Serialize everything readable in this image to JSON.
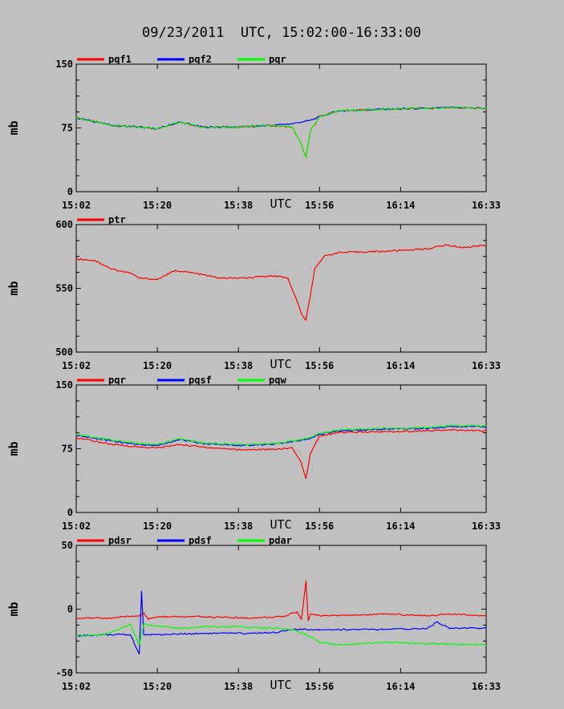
{
  "title": "09/23/2011  UTC, 15:02:00-16:33:00",
  "colors": {
    "red": "#ff0000",
    "blue": "#0000ff",
    "green": "#00ff00",
    "background": "#c0c0c0",
    "axis": "#000000"
  },
  "chart_data": [
    {
      "type": "line",
      "ylabel": "mb",
      "xlabel": "UTC",
      "x_ticks": [
        "15:02",
        "15:20",
        "15:38",
        "15:56",
        "16:14",
        "16:33"
      ],
      "ylim": [
        0,
        150
      ],
      "y_ticks": [
        "0",
        "75",
        "150"
      ],
      "grid": false,
      "legend": "top",
      "series": [
        {
          "name": "pqf1",
          "color": "#ff0000",
          "x": [
            "15:02",
            "15:10",
            "15:16",
            "15:20",
            "15:25",
            "15:30",
            "15:38",
            "15:45",
            "15:50",
            "15:52",
            "15:53",
            "15:54",
            "15:56",
            "16:00",
            "16:10",
            "16:20",
            "16:25",
            "16:33"
          ],
          "y": [
            87,
            78,
            76,
            74,
            82,
            76,
            76,
            78,
            76,
            55,
            40,
            72,
            88,
            95,
            97,
            98,
            99,
            98
          ]
        },
        {
          "name": "pqf2",
          "color": "#0000ff",
          "x": [
            "15:02",
            "15:10",
            "15:16",
            "15:20",
            "15:25",
            "15:30",
            "15:38",
            "15:45",
            "15:50",
            "15:52",
            "15:53",
            "15:54",
            "15:56",
            "16:00",
            "16:10",
            "16:20",
            "16:25",
            "16:33"
          ],
          "y": [
            87,
            78,
            76,
            74,
            82,
            76,
            76,
            78,
            80,
            82,
            83,
            84,
            88,
            95,
            97,
            98,
            99,
            98
          ]
        },
        {
          "name": "pqr",
          "color": "#00ff00",
          "x": [
            "15:02",
            "15:10",
            "15:16",
            "15:20",
            "15:25",
            "15:30",
            "15:38",
            "15:45",
            "15:50",
            "15:52",
            "15:53",
            "15:54",
            "15:56",
            "16:00",
            "16:10",
            "16:20",
            "16:25",
            "16:33"
          ],
          "y": [
            87,
            78,
            76,
            74,
            82,
            76,
            76,
            78,
            76,
            55,
            40,
            72,
            88,
            95,
            97,
            98,
            99,
            98
          ]
        }
      ]
    },
    {
      "type": "line",
      "ylabel": "mb",
      "xlabel": "UTC",
      "x_ticks": [
        "15:02",
        "15:20",
        "15:38",
        "15:56",
        "16:14",
        "16:33"
      ],
      "ylim": [
        500,
        600
      ],
      "y_ticks": [
        "500",
        "550",
        "600"
      ],
      "grid": false,
      "legend": "top",
      "series": [
        {
          "name": "ptr",
          "color": "#ff0000",
          "x": [
            "15:02",
            "15:06",
            "15:10",
            "15:14",
            "15:16",
            "15:20",
            "15:24",
            "15:28",
            "15:34",
            "15:40",
            "15:46",
            "15:49",
            "15:51",
            "15:52",
            "15:53",
            "15:54",
            "15:55",
            "15:57",
            "16:00",
            "16:10",
            "16:20",
            "16:24",
            "16:28",
            "16:33"
          ],
          "y": [
            573,
            572,
            565,
            562,
            558,
            557,
            564,
            562,
            558,
            558,
            560,
            558,
            540,
            530,
            525,
            545,
            566,
            575,
            578,
            579,
            581,
            584,
            582,
            584
          ]
        }
      ]
    },
    {
      "type": "line",
      "ylabel": "mb",
      "xlabel": "UTC",
      "x_ticks": [
        "15:02",
        "15:20",
        "15:38",
        "15:56",
        "16:14",
        "16:33"
      ],
      "ylim": [
        0,
        150
      ],
      "y_ticks": [
        "0",
        "75",
        "150"
      ],
      "grid": false,
      "legend": "top",
      "series": [
        {
          "name": "pqr",
          "color": "#ff0000",
          "x": [
            "15:02",
            "15:10",
            "15:16",
            "15:20",
            "15:25",
            "15:30",
            "15:38",
            "15:45",
            "15:50",
            "15:52",
            "15:53",
            "15:54",
            "15:56",
            "16:00",
            "16:10",
            "16:20",
            "16:25",
            "16:33"
          ],
          "y": [
            88,
            80,
            77,
            76,
            80,
            77,
            74,
            74,
            76,
            58,
            40,
            70,
            90,
            94,
            95,
            96,
            97,
            96
          ]
        },
        {
          "name": "pqsf",
          "color": "#0000ff",
          "x": [
            "15:02",
            "15:10",
            "15:16",
            "15:20",
            "15:25",
            "15:30",
            "15:38",
            "15:45",
            "15:50",
            "15:52",
            "15:53",
            "15:54",
            "15:56",
            "16:00",
            "16:10",
            "16:20",
            "16:25",
            "16:33"
          ],
          "y": [
            91,
            84,
            80,
            79,
            86,
            81,
            79,
            80,
            83,
            85,
            86,
            87,
            92,
            96,
            98,
            99,
            101,
            101
          ]
        },
        {
          "name": "pqw",
          "color": "#00ff00",
          "x": [
            "15:02",
            "15:10",
            "15:16",
            "15:20",
            "15:25",
            "15:30",
            "15:38",
            "15:45",
            "15:50",
            "15:52",
            "15:53",
            "15:54",
            "15:56",
            "16:00",
            "16:10",
            "16:20",
            "16:25",
            "16:33"
          ],
          "y": [
            92,
            85,
            81,
            80,
            87,
            82,
            80,
            81,
            84,
            86,
            87,
            88,
            93,
            97,
            99,
            100,
            102,
            102
          ]
        }
      ]
    },
    {
      "type": "line",
      "ylabel": "mb",
      "xlabel": "UTC",
      "x_ticks": [
        "15:02",
        "15:20",
        "15:38",
        "15:56",
        "16:14",
        "16:33"
      ],
      "ylim": [
        -50,
        50
      ],
      "y_ticks": [
        "-50",
        "0",
        "50"
      ],
      "grid": false,
      "legend": "top",
      "series": [
        {
          "name": "pdsr",
          "color": "#ff0000",
          "x": [
            "15:02",
            "15:10",
            "15:16",
            "15:17",
            "15:18",
            "15:20",
            "15:30",
            "15:40",
            "15:48",
            "15:50",
            "15:51",
            "15:52",
            "15:53",
            "15:53.5",
            "15:54",
            "15:56",
            "16:00",
            "16:10",
            "16:20",
            "16:25",
            "16:33"
          ],
          "y": [
            -7,
            -7,
            -5,
            -3,
            -8,
            -6,
            -6,
            -7,
            -6,
            -3,
            -2,
            -8,
            22,
            -9,
            -4,
            -5,
            -5,
            -4,
            -5,
            -4,
            -5
          ]
        },
        {
          "name": "pdsf",
          "color": "#0000ff",
          "x": [
            "15:02",
            "15:08",
            "15:14",
            "15:16",
            "15:16.5",
            "15:17",
            "15:18",
            "15:20",
            "15:30",
            "15:40",
            "15:47",
            "15:50",
            "15:56",
            "16:00",
            "16:10",
            "16:20",
            "16:22",
            "16:25",
            "16:33"
          ],
          "y": [
            -21,
            -20,
            -20,
            -35,
            14,
            -20,
            -20,
            -20,
            -19,
            -19,
            -18,
            -16,
            -16,
            -16,
            -16,
            -15,
            -10,
            -15,
            -15
          ]
        },
        {
          "name": "pdar",
          "color": "#00ff00",
          "x": [
            "15:02",
            "15:08",
            "15:12",
            "15:14",
            "15:16",
            "15:17",
            "15:20",
            "15:25",
            "15:30",
            "15:40",
            "15:47",
            "15:50",
            "15:53",
            "15:56",
            "16:00",
            "16:05",
            "16:10",
            "16:20",
            "16:33"
          ],
          "y": [
            -21,
            -20,
            -15,
            -12,
            -28,
            -12,
            -13,
            -15,
            -14,
            -14,
            -15,
            -16,
            -20,
            -26,
            -28,
            -27,
            -26,
            -27,
            -28
          ]
        }
      ]
    }
  ]
}
